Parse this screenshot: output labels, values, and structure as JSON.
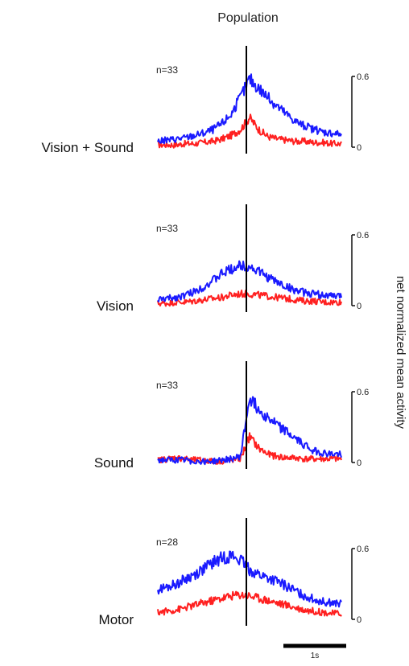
{
  "chart_data": {
    "type": "line",
    "title": "Population",
    "ylabel": "net normalized mean activity",
    "scale_bar": {
      "label": "1s"
    },
    "colors": {
      "blue": "#1a1aff",
      "red": "#ff2020"
    },
    "panels": [
      {
        "label": "Vision + Sound",
        "n_label": "n=33",
        "ylim": [
          0,
          0.6
        ],
        "ytick_labels": [
          "0",
          "0.6"
        ],
        "series": [
          {
            "color": "blue",
            "values": [
              0.05,
              0.06,
              0.07,
              0.08,
              0.1,
              0.12,
              0.15,
              0.2,
              0.28,
              0.42,
              0.58,
              0.5,
              0.42,
              0.35,
              0.28,
              0.22,
              0.18,
              0.15,
              0.13,
              0.12,
              0.11
            ]
          },
          {
            "color": "red",
            "values": [
              0.02,
              0.02,
              0.02,
              0.03,
              0.03,
              0.04,
              0.05,
              0.07,
              0.1,
              0.15,
              0.25,
              0.15,
              0.09,
              0.07,
              0.06,
              0.05,
              0.05,
              0.04,
              0.04,
              0.03,
              0.03
            ]
          }
        ]
      },
      {
        "label": "Vision",
        "n_label": "n=33",
        "ylim": [
          0,
          0.6
        ],
        "ytick_labels": [
          "0",
          "0.6"
        ],
        "series": [
          {
            "color": "blue",
            "values": [
              0.05,
              0.06,
              0.07,
              0.09,
              0.12,
              0.16,
              0.21,
              0.27,
              0.31,
              0.34,
              0.33,
              0.29,
              0.24,
              0.2,
              0.16,
              0.13,
              0.11,
              0.1,
              0.09,
              0.08,
              0.08
            ]
          },
          {
            "color": "red",
            "values": [
              0.02,
              0.02,
              0.03,
              0.03,
              0.04,
              0.05,
              0.06,
              0.07,
              0.09,
              0.1,
              0.1,
              0.09,
              0.08,
              0.07,
              0.06,
              0.05,
              0.04,
              0.04,
              0.03,
              0.03,
              0.03
            ]
          }
        ]
      },
      {
        "label": "Sound",
        "n_label": "n=33",
        "ylim": [
          0,
          0.6
        ],
        "ytick_labels": [
          "0",
          "0.6"
        ],
        "series": [
          {
            "color": "blue",
            "values": [
              0.02,
              0.02,
              0.02,
              0.02,
              0.01,
              0.01,
              0.01,
              0.02,
              0.03,
              0.05,
              0.55,
              0.45,
              0.38,
              0.32,
              0.26,
              0.2,
              0.15,
              0.1,
              0.08,
              0.07,
              0.07
            ]
          },
          {
            "color": "red",
            "values": [
              0.02,
              0.03,
              0.04,
              0.03,
              0.02,
              0.02,
              0.01,
              0.01,
              0.02,
              0.03,
              0.22,
              0.12,
              0.07,
              0.05,
              0.04,
              0.04,
              0.03,
              0.03,
              0.03,
              0.03,
              0.03
            ]
          }
        ]
      },
      {
        "label": "Motor",
        "n_label": "n=28",
        "ylim": [
          0,
          0.6
        ],
        "ytick_labels": [
          "0",
          "0.6"
        ],
        "series": [
          {
            "color": "blue",
            "values": [
              0.25,
              0.27,
              0.3,
              0.34,
              0.38,
              0.43,
              0.48,
              0.52,
              0.54,
              0.5,
              0.42,
              0.38,
              0.35,
              0.32,
              0.28,
              0.24,
              0.2,
              0.17,
              0.15,
              0.14,
              0.13
            ]
          },
          {
            "color": "red",
            "values": [
              0.06,
              0.07,
              0.08,
              0.1,
              0.12,
              0.14,
              0.16,
              0.18,
              0.2,
              0.21,
              0.2,
              0.18,
              0.16,
              0.14,
              0.12,
              0.1,
              0.08,
              0.07,
              0.06,
              0.05,
              0.05
            ]
          }
        ]
      }
    ]
  }
}
